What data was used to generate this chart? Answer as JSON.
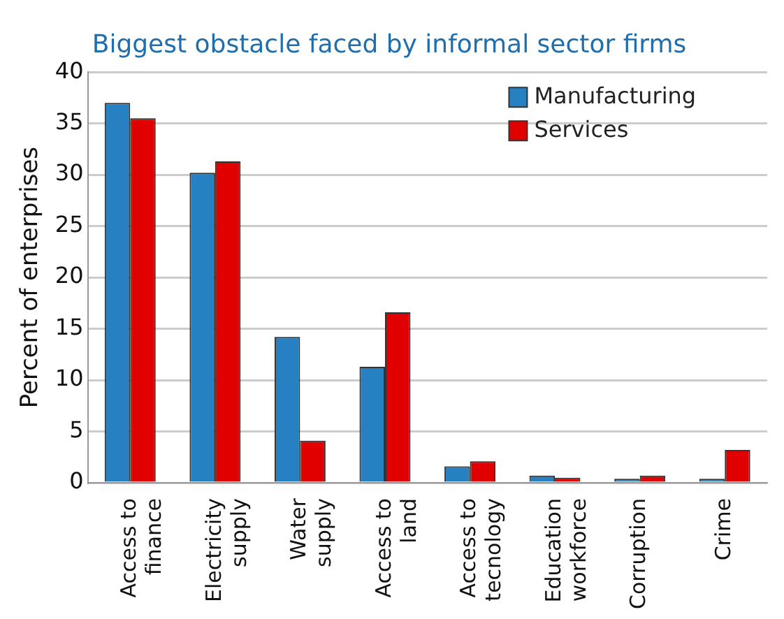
{
  "chart_data": {
    "type": "bar",
    "title": "Biggest obstacle faced by informal sector firms",
    "ylabel": "Percent of enterprises",
    "categories": [
      "Access to\nfinance",
      "Electricity\nsupply",
      "Water\nsupply",
      "Access to\nland",
      "Access to\ntecnology",
      "Education\nworkforce",
      "Corruption",
      "Crime"
    ],
    "series": [
      {
        "name": "Manufacturing",
        "color": "#2680c2",
        "values": [
          37,
          30.2,
          14.2,
          11.3,
          1.6,
          0.7,
          0.4,
          0.4
        ]
      },
      {
        "name": "Services",
        "color": "#e00000",
        "values": [
          35.5,
          31.3,
          4.1,
          16.6,
          2.1,
          0.5,
          0.7,
          3.2
        ]
      }
    ],
    "ylim": [
      0,
      40
    ],
    "yticks": [
      0,
      5,
      10,
      15,
      20,
      25,
      30,
      35,
      40
    ],
    "grid": "y",
    "legend": "top right"
  }
}
